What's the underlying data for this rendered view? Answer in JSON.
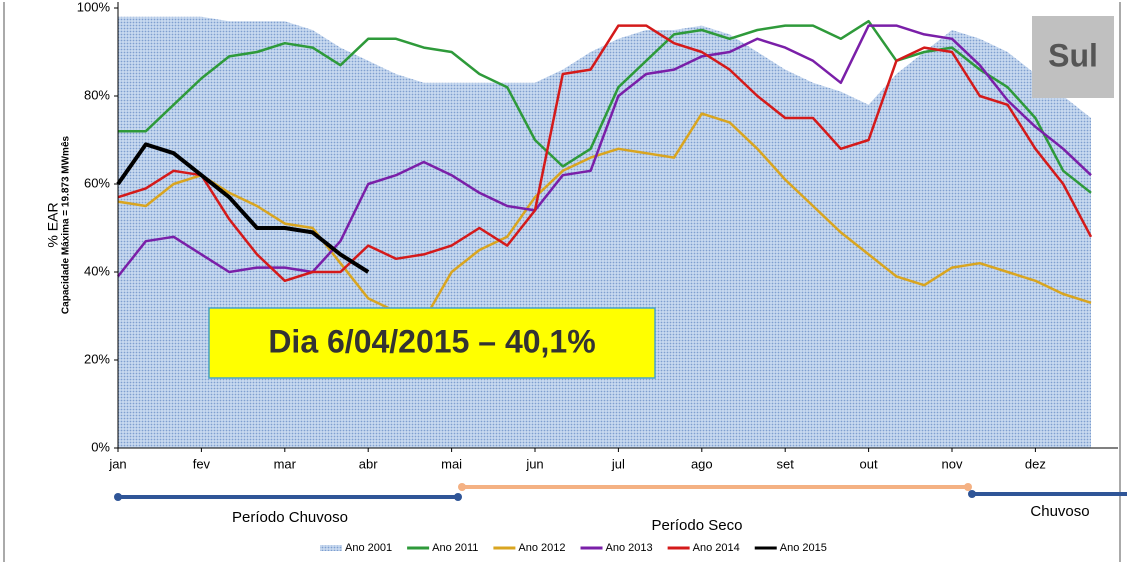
{
  "chart_data": {
    "type": "line",
    "y_label": "% EAR",
    "y_sublabel": "Capacidade Máxima = 19.873 MWmês",
    "badge": "Sul",
    "annotation": "Dia 6/04/2015 – 40,1%",
    "periods": [
      "Período Chuvoso",
      "Período Seco",
      "Chuvoso"
    ],
    "categories": [
      "jan",
      null,
      null,
      "fev",
      null,
      null,
      "mar",
      null,
      null,
      "abr",
      null,
      null,
      "mai",
      null,
      null,
      "jun",
      null,
      null,
      "jul",
      null,
      null,
      "ago",
      null,
      null,
      "set",
      null,
      null,
      "out",
      null,
      null,
      "nov",
      null,
      null,
      "dez",
      null,
      null
    ],
    "ylim": [
      0,
      100
    ],
    "yticks": [
      {
        "value": 0,
        "label": "0%"
      },
      {
        "value": 20,
        "label": "20%"
      },
      {
        "value": 40,
        "label": "40%"
      },
      {
        "value": 60,
        "label": "60%"
      },
      {
        "value": 80,
        "label": "80%"
      },
      {
        "value": 100,
        "label": "100%"
      }
    ],
    "series": [
      {
        "name": "Ano 2001",
        "color": "#a9c3e6",
        "area": true,
        "values": [
          98,
          98,
          98,
          98,
          97,
          97,
          97,
          95,
          91,
          88,
          85,
          83,
          83,
          83,
          83,
          83,
          86,
          90,
          93,
          95,
          95,
          96,
          94,
          90,
          86,
          83,
          81,
          78,
          85,
          90,
          95,
          93,
          90,
          85,
          80,
          75
        ]
      },
      {
        "name": "Ano 2011",
        "color": "#2e9a3a",
        "values": [
          72,
          72,
          78,
          84,
          89,
          90,
          92,
          91,
          87,
          93,
          93,
          91,
          90,
          85,
          82,
          70,
          64,
          68,
          82,
          88,
          94,
          95,
          93,
          95,
          96,
          96,
          93,
          97,
          88,
          90,
          91,
          86,
          82,
          75,
          63,
          58
        ]
      },
      {
        "name": "Ano 2012",
        "color": "#d9a520",
        "values": [
          56,
          55,
          60,
          62,
          58,
          55,
          51,
          50,
          42,
          34,
          31,
          29,
          40,
          45,
          48,
          57,
          63,
          66,
          68,
          67,
          66,
          76,
          74,
          68,
          61,
          55,
          49,
          44,
          39,
          37,
          41,
          42,
          40,
          38,
          35,
          33
        ]
      },
      {
        "name": "Ano 2013",
        "color": "#7a1fa8",
        "values": [
          39,
          47,
          48,
          44,
          40,
          41,
          41,
          40,
          47,
          60,
          62,
          65,
          62,
          58,
          55,
          54,
          62,
          63,
          80,
          85,
          86,
          89,
          90,
          93,
          91,
          88,
          83,
          96,
          96,
          94,
          93,
          87,
          79,
          73,
          68,
          62
        ]
      },
      {
        "name": "Ano 2014",
        "color": "#d41a1a",
        "values": [
          57,
          59,
          63,
          62,
          52,
          44,
          38,
          40,
          40,
          46,
          43,
          44,
          46,
          50,
          46,
          54,
          85,
          86,
          96,
          96,
          92,
          90,
          86,
          80,
          75,
          75,
          68,
          70,
          88,
          91,
          90,
          80,
          78,
          68,
          60,
          48
        ]
      },
      {
        "name": "Ano 2015",
        "color": "#000000",
        "values": [
          60,
          69,
          67,
          62,
          57,
          50,
          50,
          49,
          44,
          40,
          null,
          null,
          null,
          null,
          null,
          null,
          null,
          null,
          null,
          null,
          null,
          null,
          null,
          null,
          null,
          null,
          null,
          null,
          null,
          null,
          null,
          null,
          null,
          null,
          null,
          null
        ]
      }
    ]
  }
}
